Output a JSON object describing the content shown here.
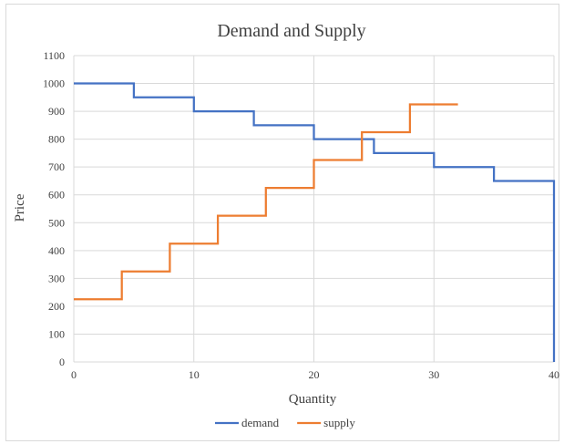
{
  "chart_data": {
    "type": "line",
    "step": true,
    "title": "Demand and Supply",
    "xlabel": "Quantity",
    "ylabel": "Price",
    "xlim": [
      0,
      40
    ],
    "ylim": [
      0,
      1100
    ],
    "xticks": [
      0,
      10,
      20,
      30,
      40
    ],
    "yticks": [
      0,
      100,
      200,
      300,
      400,
      500,
      600,
      700,
      800,
      900,
      1000,
      1100
    ],
    "grid": true,
    "legend_position": "bottom",
    "series": [
      {
        "name": "demand",
        "color": "#4472C4",
        "x": [
          0,
          5,
          5,
          10,
          10,
          15,
          15,
          20,
          20,
          25,
          25,
          30,
          30,
          35,
          35,
          40,
          40
        ],
        "y": [
          1000,
          1000,
          950,
          950,
          900,
          900,
          850,
          850,
          800,
          800,
          750,
          750,
          700,
          700,
          650,
          650,
          0
        ]
      },
      {
        "name": "supply",
        "color": "#ED7D31",
        "x": [
          0,
          4,
          4,
          8,
          8,
          12,
          12,
          16,
          16,
          20,
          20,
          24,
          24,
          28,
          28,
          32
        ],
        "y": [
          225,
          225,
          325,
          325,
          425,
          425,
          525,
          525,
          625,
          625,
          725,
          725,
          825,
          825,
          925,
          925
        ]
      }
    ]
  }
}
